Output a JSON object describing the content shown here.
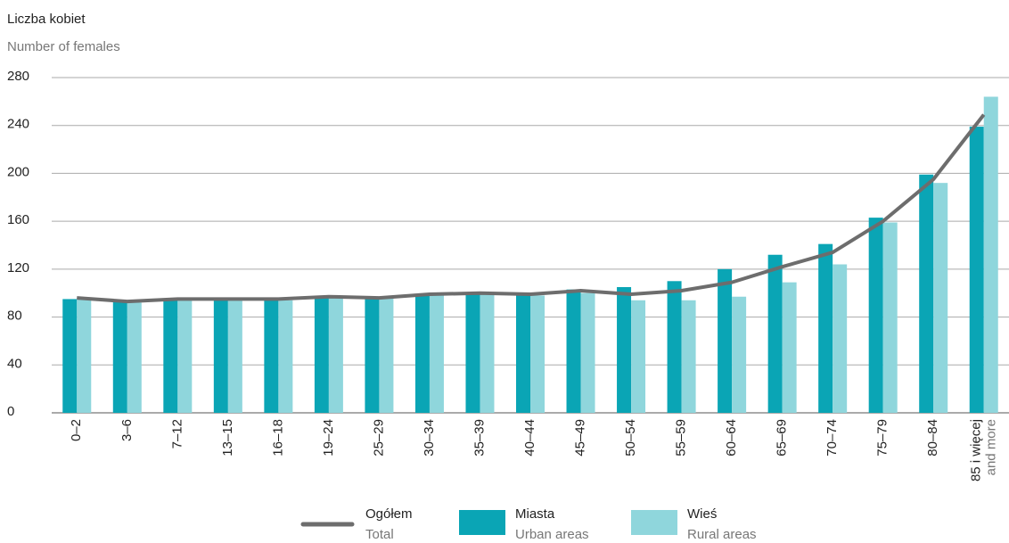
{
  "chart_data": {
    "type": "bar_line",
    "y_label": "Liczba kobiet",
    "y_label_en": "Number of females",
    "categories": [
      "0–2",
      "3–6",
      "7–12",
      "13–15",
      "16–18",
      "19–24",
      "25–29",
      "30–34",
      "35–39",
      "40–44",
      "45–49",
      "50–54",
      "55–59",
      "60–64",
      "65–69",
      "70–74",
      "75–79",
      "80–84",
      [
        "85 i więcej",
        "and more"
      ]
    ],
    "series": [
      {
        "name": "Ogółem",
        "name_en": "Total",
        "kind": "line",
        "color": "#6d6d6d",
        "values": [
          96,
          93,
          95,
          95,
          95,
          97,
          96,
          99,
          100,
          99,
          102,
          99,
          102,
          109,
          122,
          134,
          160,
          195,
          249
        ]
      },
      {
        "name": "Miasta",
        "name_en": "Urban areas",
        "kind": "bar",
        "color": "#0aa5b5",
        "values": [
          95,
          93,
          95,
          95,
          95,
          97,
          96,
          99,
          100,
          99,
          103,
          105,
          110,
          120,
          132,
          141,
          163,
          199,
          239
        ]
      },
      {
        "name": "Wieś",
        "name_en": "Rural areas",
        "kind": "bar",
        "color": "#8fd6dc",
        "values": [
          96,
          92,
          94,
          94,
          94,
          97,
          96,
          100,
          100,
          98,
          100,
          94,
          94,
          97,
          109,
          124,
          159,
          192,
          264
        ]
      }
    ],
    "ylim": [
      0,
      280
    ],
    "yticks": [
      0,
      40,
      80,
      120,
      160,
      200,
      240,
      280
    ],
    "grid": true
  }
}
